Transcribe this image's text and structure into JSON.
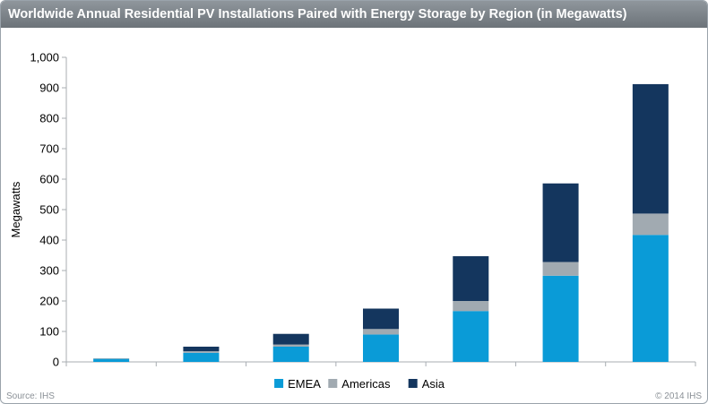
{
  "chart_data": {
    "type": "bar",
    "stacked": true,
    "title": "Worldwide Annual Residential PV Installations Paired with Energy Storage by Region (in Megawatts)",
    "ylabel": "Megawatts",
    "xlabel": "",
    "ylim": [
      0,
      1000
    ],
    "yticks": [
      0,
      100,
      200,
      300,
      400,
      500,
      600,
      700,
      800,
      900,
      1000
    ],
    "ytick_labels": [
      "0",
      "100",
      "200",
      "300",
      "400",
      "500",
      "600",
      "700",
      "800",
      "900",
      "1,000"
    ],
    "categories": [
      "",
      "",
      "",
      "",
      "",
      "",
      ""
    ],
    "series": [
      {
        "name": "EMEA",
        "color": "#0a9bd7",
        "values": [
          10,
          30,
          50,
          90,
          167,
          283,
          417
        ]
      },
      {
        "name": "Americas",
        "color": "#a1aab1",
        "values": [
          2,
          5,
          7,
          18,
          33,
          45,
          70
        ]
      },
      {
        "name": "Asia",
        "color": "#14365e",
        "values": [
          0,
          15,
          35,
          67,
          147,
          258,
          425
        ]
      }
    ],
    "grid": false,
    "legend_position": "bottom"
  },
  "footer": {
    "source": "Source: IHS",
    "copyright": "© 2014 IHS"
  }
}
